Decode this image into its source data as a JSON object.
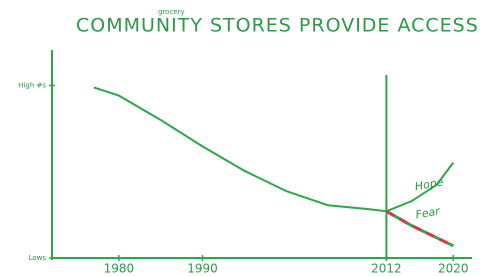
{
  "chart_data": {
    "type": "line",
    "title": "COMMUNITY STORES PROVIDE ACCESS",
    "inserted_word": "grocery",
    "xlim": [
      1972,
      2022
    ],
    "xticks": [
      1980,
      1990,
      2012,
      2020
    ],
    "ylim": [
      0,
      100
    ],
    "yticks": [
      {
        "value": 85,
        "label": "High #s"
      },
      {
        "value": 0,
        "label": "Lows"
      }
    ],
    "marker_x": 2012,
    "series": [
      {
        "color": "#2aa84a",
        "dash": false,
        "x": [
          1977,
          1980,
          1985,
          1990,
          1995,
          2000,
          2005,
          2010,
          2012
        ],
        "values": [
          84,
          80,
          68,
          55,
          43,
          33,
          26,
          24,
          23
        ]
      },
      {
        "name": "Hope",
        "color": "#2aa84a",
        "dash": false,
        "x": [
          2012,
          2015,
          2018,
          2020
        ],
        "values": [
          23,
          28,
          36,
          47
        ]
      },
      {
        "name": "Fear",
        "color": "#d43a4a",
        "dash": true,
        "x": [
          2012,
          2015,
          2018,
          2020
        ],
        "values": [
          23,
          16,
          10,
          6
        ]
      }
    ]
  }
}
